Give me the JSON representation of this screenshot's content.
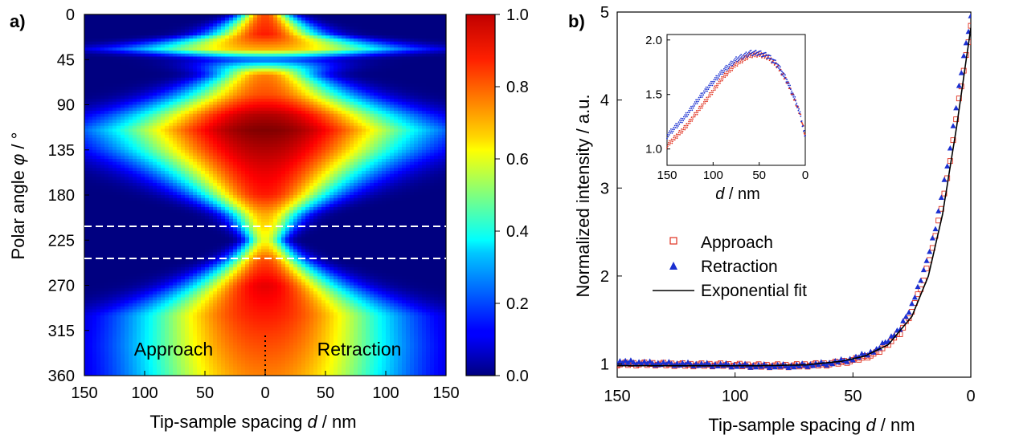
{
  "chart_data": [
    {
      "type": "heatmap",
      "panel_label": "a)",
      "xlabel": "Tip-sample spacing d / nm",
      "xlabel_parts": {
        "pre": "Tip-sample spacing ",
        "var": "d",
        "post": " / nm"
      },
      "ylabel": "Polar angle φ / °",
      "ylabel_parts": {
        "pre": "Polar angle ",
        "var": "φ",
        "post": " / °"
      },
      "x_ticks": [
        "150",
        "100",
        "50",
        "0",
        "50",
        "100",
        "150"
      ],
      "y_ticks": [
        "0",
        "45",
        "90",
        "135",
        "180",
        "225",
        "270",
        "315",
        "360"
      ],
      "xlim": [
        -150,
        150
      ],
      "ylim": [
        0,
        360
      ],
      "colorbar": {
        "range": [
          0.0,
          1.0
        ],
        "ticks": [
          "0.0",
          "0.2",
          "0.4",
          "0.6",
          "0.8",
          "1.0"
        ],
        "colormap": "jet"
      },
      "annotations": [
        "Approach",
        "Retraction"
      ],
      "reference_lines_deg": [
        210,
        243
      ],
      "dotted_line_x": 0,
      "intensity_profile": [
        {
          "phi": 0,
          "peak": 0.8,
          "width_nm": 20
        },
        {
          "phi": 20,
          "peak": 0.85,
          "width_nm": 45
        },
        {
          "phi": 35,
          "peak": 0.7,
          "width_nm": 110
        },
        {
          "phi": 45,
          "peak": 0.2,
          "width_nm": 60
        },
        {
          "phi": 60,
          "peak": 0.75,
          "width_nm": 40
        },
        {
          "phi": 80,
          "peak": 0.8,
          "width_nm": 70
        },
        {
          "phi": 100,
          "peak": 0.95,
          "width_nm": 105
        },
        {
          "phi": 115,
          "peak": 1.0,
          "width_nm": 125
        },
        {
          "phi": 135,
          "peak": 0.95,
          "width_nm": 110
        },
        {
          "phi": 155,
          "peak": 0.9,
          "width_nm": 85
        },
        {
          "phi": 180,
          "peak": 0.85,
          "width_nm": 55
        },
        {
          "phi": 200,
          "peak": 0.7,
          "width_nm": 30
        },
        {
          "phi": 225,
          "peak": 0.6,
          "width_nm": 15
        },
        {
          "phi": 245,
          "peak": 0.8,
          "width_nm": 30
        },
        {
          "phi": 270,
          "peak": 0.9,
          "width_nm": 60
        },
        {
          "phi": 300,
          "peak": 0.85,
          "width_nm": 105
        },
        {
          "phi": 330,
          "peak": 0.8,
          "width_nm": 110
        },
        {
          "phi": 360,
          "peak": 0.75,
          "width_nm": 110
        }
      ]
    },
    {
      "type": "scatter",
      "panel_label": "b)",
      "xlabel": "Tip-sample spacing d / nm",
      "xlabel_parts": {
        "pre": "Tip-sample spacing ",
        "var": "d",
        "post": " / nm"
      },
      "ylabel": "Normalized intensity / a.u.",
      "x_ticks": [
        "150",
        "100",
        "50",
        "0"
      ],
      "y_ticks": [
        "1",
        "2",
        "3",
        "4",
        "5"
      ],
      "xlim": [
        150,
        0
      ],
      "ylim": [
        0.85,
        5.0
      ],
      "legend_position": "center-left",
      "series": [
        {
          "name": "Approach",
          "marker": "open-square",
          "color": "#e0301e",
          "x": [
            150,
            135,
            120,
            105,
            90,
            75,
            60,
            50,
            40,
            30,
            25,
            20,
            15,
            10,
            5,
            2,
            0
          ],
          "y": [
            1.0,
            1.0,
            0.99,
            0.99,
            0.98,
            0.98,
            1.0,
            1.04,
            1.12,
            1.35,
            1.6,
            1.95,
            2.45,
            3.1,
            4.0,
            4.5,
            4.85
          ]
        },
        {
          "name": "Retraction",
          "marker": "filled-triangle",
          "color": "#1a2fd0",
          "x": [
            150,
            135,
            120,
            105,
            90,
            75,
            60,
            50,
            40,
            30,
            25,
            20,
            15,
            10,
            5,
            2,
            0
          ],
          "y": [
            1.03,
            1.01,
            1.0,
            0.99,
            0.98,
            0.98,
            1.01,
            1.06,
            1.16,
            1.4,
            1.68,
            2.05,
            2.55,
            3.25,
            4.15,
            4.65,
            4.95
          ]
        },
        {
          "name": "Exponential fit",
          "marker": "line",
          "color": "#000000",
          "x": [
            150,
            120,
            90,
            70,
            55,
            45,
            35,
            25,
            18,
            12,
            6,
            2,
            0
          ],
          "y": [
            0.98,
            0.98,
            0.98,
            0.99,
            1.03,
            1.09,
            1.22,
            1.54,
            2.0,
            2.7,
            3.7,
            4.45,
            4.82
          ]
        }
      ],
      "inset": {
        "xlabel": "d / nm",
        "xlabel_parts": {
          "var": "d",
          "post": " / nm"
        },
        "x_ticks": [
          "150",
          "100",
          "50",
          "0"
        ],
        "y_ticks": [
          "1.0",
          "1.5",
          "2.0"
        ],
        "xlim": [
          150,
          0
        ],
        "ylim": [
          0.85,
          2.05
        ],
        "series": [
          {
            "name": "Approach",
            "color": "#e0301e",
            "x": [
              150,
              130,
              110,
              90,
              75,
              60,
              50,
              40,
              30,
              20,
              10,
              5,
              0
            ],
            "y": [
              1.03,
              1.2,
              1.42,
              1.65,
              1.78,
              1.86,
              1.87,
              1.84,
              1.76,
              1.62,
              1.42,
              1.3,
              1.12
            ]
          },
          {
            "name": "Retraction",
            "color": "#1a2fd0",
            "x": [
              150,
              130,
              110,
              90,
              75,
              60,
              50,
              40,
              30,
              20,
              10,
              5,
              0
            ],
            "y": [
              1.12,
              1.3,
              1.52,
              1.71,
              1.82,
              1.88,
              1.88,
              1.85,
              1.77,
              1.63,
              1.43,
              1.3,
              1.1
            ]
          }
        ]
      }
    }
  ]
}
